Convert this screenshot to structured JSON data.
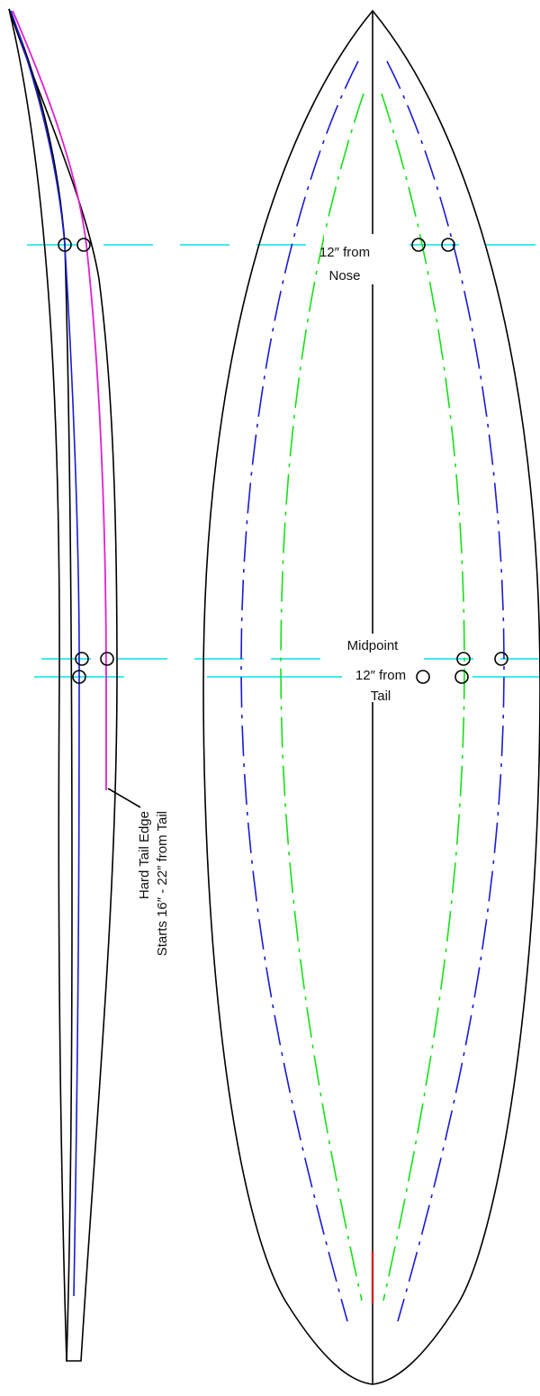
{
  "labels": {
    "nose_line1": "12″ from",
    "nose_line2": "Nose",
    "midpoint": "Midpoint",
    "tail_line1": "12″ from",
    "tail_line2": "Tail",
    "hard_tail_line1": "Hard Tail Edge",
    "hard_tail_line2": "Starts 16″ - 22″ from Tail"
  },
  "colors": {
    "outline": "#000000",
    "reference_line": "#00e5e5",
    "blue_rail": "#1a1ad6",
    "green_rail": "#16e016",
    "magenta_rail": "#e020d0",
    "stringer_tail": "#d42020",
    "background": "#ffffff"
  }
}
